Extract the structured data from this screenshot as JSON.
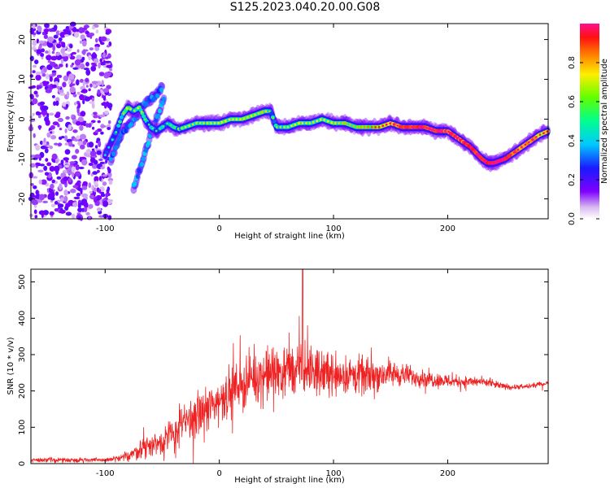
{
  "title": "S125.2023.040.20.00.G08",
  "chart_data": [
    {
      "type": "heatmap",
      "xlabel": "Height of straight line (km)",
      "ylabel": "Frequency (Hz)",
      "xlim": [
        -165,
        288
      ],
      "ylim": [
        -25,
        24
      ],
      "xticks": [
        -100,
        0,
        100,
        200
      ],
      "yticks": [
        -20,
        -10,
        0,
        10,
        20
      ],
      "colorbar": {
        "label": "Normalized spectral amplitude",
        "range": [
          0.0,
          1.0
        ],
        "ticks": [
          0.0,
          0.2,
          0.4,
          0.6,
          0.8
        ]
      },
      "ridge": {
        "x": [
          -100,
          -95,
          -90,
          -85,
          -80,
          -75,
          -70,
          -65,
          -60,
          -55,
          -50,
          -45,
          -40,
          -35,
          -30,
          -25,
          -20,
          -10,
          0,
          10,
          20,
          30,
          40,
          45,
          50,
          60,
          70,
          80,
          90,
          100,
          110,
          120,
          130,
          140,
          150,
          160,
          170,
          180,
          190,
          200,
          210,
          220,
          230,
          235,
          240,
          250,
          260,
          270,
          280,
          288
        ],
        "y": [
          -9,
          -6,
          -3,
          1,
          3,
          2,
          3,
          0,
          -2,
          -3,
          -2,
          -1,
          -2,
          -2.5,
          -2,
          -1.5,
          -1,
          -1,
          -1,
          0,
          0,
          1,
          2,
          2,
          -2,
          -2,
          -1,
          -1,
          0,
          -1,
          -1,
          -2,
          -2,
          -2,
          -1,
          -2,
          -2,
          -2,
          -3,
          -3,
          -5,
          -7,
          -10,
          -11,
          -11,
          -10,
          -8,
          -6,
          -4,
          -3
        ],
        "amplitude": [
          0.2,
          0.25,
          0.3,
          0.4,
          0.5,
          0.4,
          0.5,
          0.35,
          0.3,
          0.3,
          0.3,
          0.3,
          0.35,
          0.4,
          0.45,
          0.45,
          0.45,
          0.45,
          0.5,
          0.5,
          0.5,
          0.5,
          0.55,
          0.35,
          0.4,
          0.45,
          0.5,
          0.45,
          0.5,
          0.5,
          0.55,
          0.55,
          0.6,
          0.7,
          0.75,
          0.9,
          0.9,
          0.9,
          0.9,
          0.9,
          0.9,
          0.9,
          0.95,
          1.0,
          1.0,
          0.9,
          0.85,
          0.8,
          0.75,
          0.7
        ]
      },
      "secondary_branches": [
        {
          "x": [
            -95,
            -90,
            -85,
            -80,
            -75,
            -70,
            -65,
            -60,
            -55,
            -50
          ],
          "y": [
            -10,
            -7,
            -3,
            -2,
            0,
            2,
            4,
            5,
            6,
            8
          ],
          "amplitude": 0.3
        },
        {
          "x": [
            -75,
            -70,
            -65,
            -60,
            -55,
            -50,
            -48
          ],
          "y": [
            -17,
            -13,
            -8,
            -4,
            0,
            4,
            6
          ],
          "amplitude": 0.35
        }
      ],
      "noise_region_x": [
        -165,
        -95
      ]
    },
    {
      "type": "line",
      "xlabel": "Height of straight line (km)",
      "ylabel": "SNR (10 * v/v)",
      "xlim": [
        -165,
        288
      ],
      "ylim": [
        0,
        535
      ],
      "xticks": [
        -100,
        0,
        100,
        200
      ],
      "yticks": [
        0,
        100,
        200,
        300,
        400,
        500
      ],
      "color": "#ee2222",
      "envelope": {
        "x": [
          -165,
          -100,
          -85,
          -75,
          -65,
          -50,
          -40,
          -30,
          -20,
          -10,
          0,
          10,
          20,
          30,
          40,
          50,
          60,
          70,
          80,
          90,
          100,
          110,
          120,
          130,
          140,
          150,
          160,
          170,
          180,
          190,
          200,
          210,
          220,
          230,
          240,
          250,
          260,
          270,
          280,
          288
        ],
        "mean": [
          10,
          10,
          15,
          30,
          45,
          60,
          80,
          110,
          130,
          150,
          175,
          200,
          220,
          235,
          245,
          250,
          255,
          255,
          255,
          250,
          248,
          245,
          240,
          240,
          245,
          248,
          245,
          240,
          235,
          230,
          228,
          226,
          225,
          225,
          218,
          212,
          210,
          212,
          218,
          222
        ],
        "spread": [
          6,
          6,
          8,
          20,
          30,
          40,
          50,
          60,
          60,
          60,
          60,
          60,
          65,
          65,
          70,
          70,
          70,
          65,
          60,
          60,
          55,
          50,
          50,
          45,
          40,
          35,
          30,
          25,
          22,
          20,
          18,
          15,
          14,
          12,
          10,
          8,
          7,
          6,
          6,
          6
        ]
      },
      "peak": {
        "x": 73,
        "y": 535
      }
    }
  ]
}
